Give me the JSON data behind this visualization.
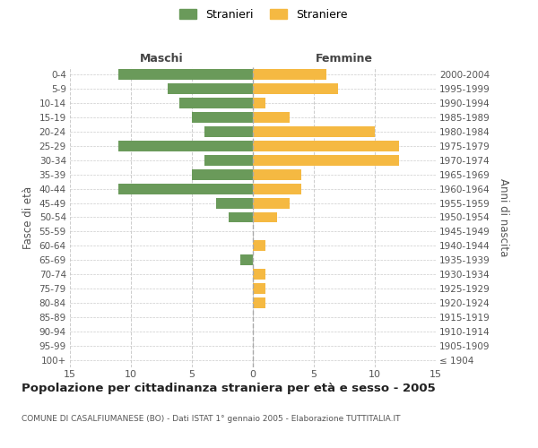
{
  "age_groups": [
    "100+",
    "95-99",
    "90-94",
    "85-89",
    "80-84",
    "75-79",
    "70-74",
    "65-69",
    "60-64",
    "55-59",
    "50-54",
    "45-49",
    "40-44",
    "35-39",
    "30-34",
    "25-29",
    "20-24",
    "15-19",
    "10-14",
    "5-9",
    "0-4"
  ],
  "birth_years": [
    "≤ 1904",
    "1905-1909",
    "1910-1914",
    "1915-1919",
    "1920-1924",
    "1925-1929",
    "1930-1934",
    "1935-1939",
    "1940-1944",
    "1945-1949",
    "1950-1954",
    "1955-1959",
    "1960-1964",
    "1965-1969",
    "1970-1974",
    "1975-1979",
    "1980-1984",
    "1985-1989",
    "1990-1994",
    "1995-1999",
    "2000-2004"
  ],
  "males": [
    0,
    0,
    0,
    0,
    0,
    0,
    0,
    1,
    0,
    0,
    2,
    3,
    11,
    5,
    4,
    11,
    4,
    5,
    6,
    7,
    11
  ],
  "females": [
    0,
    0,
    0,
    0,
    1,
    1,
    1,
    0,
    1,
    0,
    2,
    3,
    4,
    4,
    12,
    12,
    10,
    3,
    1,
    7,
    6
  ],
  "male_color": "#6a9a5a",
  "female_color": "#f5b942",
  "background_color": "#ffffff",
  "grid_color": "#cccccc",
  "bar_height": 0.75,
  "xlim": 15,
  "title": "Popolazione per cittadinanza straniera per età e sesso - 2005",
  "subtitle": "COMUNE DI CASALFIUMANESE (BO) - Dati ISTAT 1° gennaio 2005 - Elaborazione TUTTITALIA.IT",
  "ylabel_left": "Fasce di età",
  "ylabel_right": "Anni di nascita",
  "xlabel_left": "Maschi",
  "xlabel_right": "Femmine",
  "legend_stranieri": "Stranieri",
  "legend_straniere": "Straniere"
}
